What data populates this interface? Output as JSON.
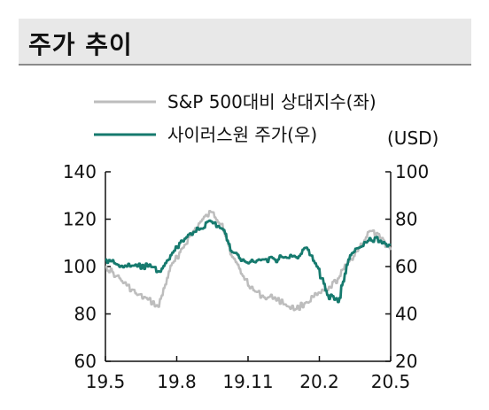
{
  "header": {
    "title": "주가 추이"
  },
  "chart_data": {
    "type": "line",
    "title": "",
    "unit_right": "(USD)",
    "x_ticks": [
      "19.5",
      "19.8",
      "19.11",
      "20.2",
      "20.5"
    ],
    "y_left": {
      "ticks": [
        60,
        80,
        100,
        120,
        140
      ],
      "lim": [
        60,
        140
      ]
    },
    "y_right": {
      "ticks": [
        20,
        40,
        60,
        80,
        100
      ],
      "lim": [
        20,
        100
      ]
    },
    "grid": false,
    "legend_position": "top-right",
    "series": [
      {
        "name": "S&P 500대비 상대지수(좌)",
        "axis": "left",
        "color": "#bdbdbd",
        "points": [
          [
            "19.5",
            100
          ],
          [
            "19.5",
            96
          ],
          [
            "19.6",
            92
          ],
          [
            "19.6",
            88
          ],
          [
            "19.7",
            86
          ],
          [
            "19.7",
            83
          ],
          [
            "19.8",
            98
          ],
          [
            "19.8",
            106
          ],
          [
            "19.9",
            113
          ],
          [
            "19.9",
            119
          ],
          [
            "19.10",
            123
          ],
          [
            "19.10",
            118
          ],
          [
            "19.11",
            104
          ],
          [
            "19.11",
            96
          ],
          [
            "19.12",
            90
          ],
          [
            "19.12",
            87
          ],
          [
            "20.1",
            87
          ],
          [
            "20.1",
            84
          ],
          [
            "20.2",
            82
          ],
          [
            "20.2",
            85
          ],
          [
            "20.3",
            88
          ],
          [
            "20.3",
            90
          ],
          [
            "20.3",
            95
          ],
          [
            "20.4",
            102
          ],
          [
            "20.4",
            108
          ],
          [
            "20.4",
            115
          ],
          [
            "20.5",
            112
          ],
          [
            "20.5",
            107
          ]
        ]
      },
      {
        "name": "사이러스원 주가(우)",
        "axis": "right",
        "color": "#167a6e",
        "points": [
          [
            "19.5",
            63
          ],
          [
            "19.5",
            61
          ],
          [
            "19.6",
            60
          ],
          [
            "19.6",
            60
          ],
          [
            "19.7",
            60
          ],
          [
            "19.7",
            58
          ],
          [
            "19.8",
            63
          ],
          [
            "19.8",
            70
          ],
          [
            "19.9",
            74
          ],
          [
            "19.9",
            76
          ],
          [
            "19.10",
            79
          ],
          [
            "19.10",
            76
          ],
          [
            "19.11",
            66
          ],
          [
            "19.11",
            63
          ],
          [
            "19.12",
            62
          ],
          [
            "19.12",
            63
          ],
          [
            "20.1",
            63
          ],
          [
            "20.1",
            64
          ],
          [
            "20.2",
            64
          ],
          [
            "20.2",
            68
          ],
          [
            "20.3",
            60
          ],
          [
            "20.3",
            48
          ],
          [
            "20.3",
            45
          ],
          [
            "20.4",
            63
          ],
          [
            "20.4",
            68
          ],
          [
            "20.4",
            72
          ],
          [
            "20.5",
            71
          ],
          [
            "20.5",
            69
          ]
        ]
      }
    ]
  }
}
